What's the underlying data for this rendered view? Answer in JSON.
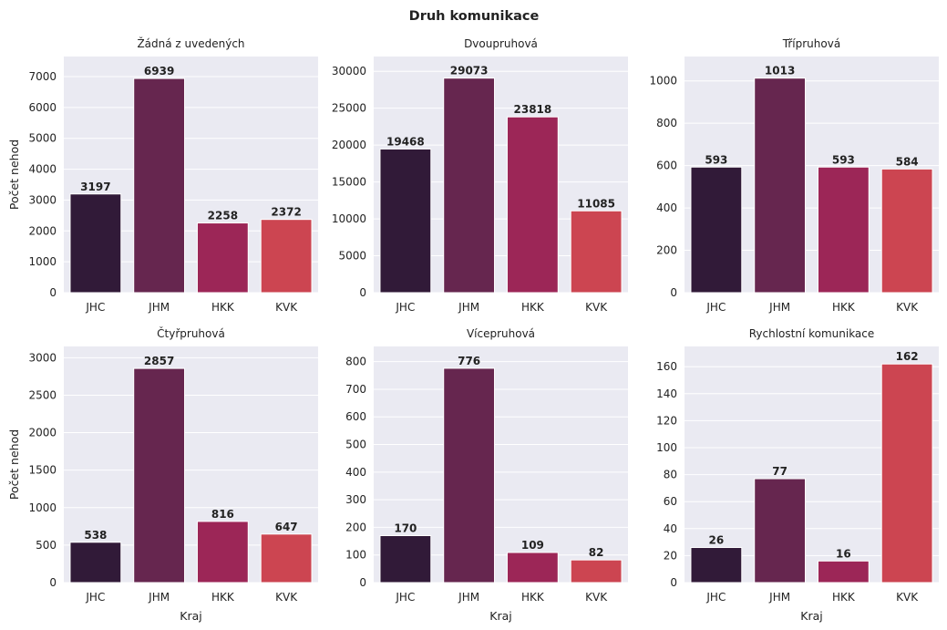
{
  "suptitle": "Druh komunikace",
  "chart_data": [
    {
      "type": "bar",
      "title": "Žádná z uvedených",
      "categories": [
        "JHC",
        "JHM",
        "HKK",
        "KVK"
      ],
      "values": [
        3197,
        6939,
        2258,
        2372
      ],
      "ylim": [
        0,
        7650
      ],
      "yticks": [
        0,
        1000,
        2000,
        3000,
        4000,
        5000,
        6000,
        7000
      ],
      "ylabel": "Počet nehod",
      "xlabel": ""
    },
    {
      "type": "bar",
      "title": "Dvoupruhová",
      "categories": [
        "JHC",
        "JHM",
        "HKK",
        "KVK"
      ],
      "values": [
        19468,
        29073,
        23818,
        11085
      ],
      "ylim": [
        0,
        32000
      ],
      "yticks": [
        0,
        5000,
        10000,
        15000,
        20000,
        25000,
        30000
      ],
      "ylabel": "",
      "xlabel": ""
    },
    {
      "type": "bar",
      "title": "Třípruhová",
      "categories": [
        "JHC",
        "JHM",
        "HKK",
        "KVK"
      ],
      "values": [
        593,
        1013,
        593,
        584
      ],
      "ylim": [
        0,
        1115
      ],
      "yticks": [
        0,
        200,
        400,
        600,
        800,
        1000
      ],
      "ylabel": "",
      "xlabel": ""
    },
    {
      "type": "bar",
      "title": "Čtyřpruhová",
      "categories": [
        "JHC",
        "JHM",
        "HKK",
        "KVK"
      ],
      "values": [
        538,
        2857,
        816,
        647
      ],
      "ylim": [
        0,
        3150
      ],
      "yticks": [
        0,
        500,
        1000,
        1500,
        2000,
        2500,
        3000
      ],
      "ylabel": "Počet nehod",
      "xlabel": "Kraj"
    },
    {
      "type": "bar",
      "title": "Vícepruhová",
      "categories": [
        "JHC",
        "JHM",
        "HKK",
        "KVK"
      ],
      "values": [
        170,
        776,
        109,
        82
      ],
      "ylim": [
        0,
        855
      ],
      "yticks": [
        0,
        100,
        200,
        300,
        400,
        500,
        600,
        700,
        800
      ],
      "ylabel": "",
      "xlabel": "Kraj"
    },
    {
      "type": "bar",
      "title": "Rychlostní komunikace",
      "categories": [
        "JHC",
        "JHM",
        "HKK",
        "KVK"
      ],
      "values": [
        26,
        77,
        16,
        162
      ],
      "ylim": [
        0,
        175
      ],
      "yticks": [
        0,
        20,
        40,
        60,
        80,
        100,
        120,
        140,
        160
      ],
      "ylabel": "",
      "xlabel": "Kraj"
    }
  ],
  "colors": {
    "bars": [
      "#311a38",
      "#66264f",
      "#9c2657",
      "#cc4551"
    ],
    "panel_bg": "#eaeaf2",
    "grid": "#ffffff",
    "text": "#222222"
  },
  "grid": true,
  "legend": "none"
}
